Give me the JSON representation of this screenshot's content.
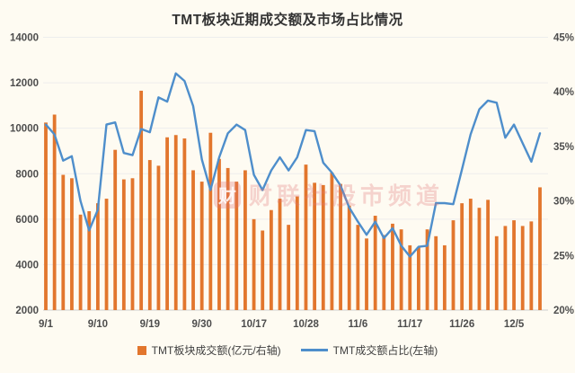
{
  "title": "TMT板块近期成交额及市场占比情况",
  "watermark": {
    "logo_char": "财",
    "text": "财联社股市频道"
  },
  "legend": {
    "bar_label": "TMT板块成交额(亿元/右轴)",
    "line_label": "TMT成交额占比(左轴)"
  },
  "colors": {
    "background": "#fefbf2",
    "bar": "#e2762d",
    "line": "#4e8ecb",
    "grid": "#ededed",
    "baseline": "#cfcfcf",
    "axis_text": "#4d4d4d"
  },
  "chart_data": {
    "type": "bar",
    "title": "TMT板块近期成交额及市场占比情况",
    "x_tick_labels": [
      "9/1",
      "9/10",
      "9/19",
      "9/30",
      "10/17",
      "10/28",
      "11/6",
      "11/17",
      "11/26",
      "12/5"
    ],
    "x_tick_indices": [
      0,
      6,
      12,
      18,
      24,
      30,
      36,
      42,
      48,
      54
    ],
    "left_axis": {
      "min": 2000,
      "max": 14000,
      "step": 2000,
      "labels": [
        "14000",
        "12000",
        "10000",
        "8000",
        "6000",
        "4000",
        "2000"
      ]
    },
    "right_axis": {
      "min": 20,
      "max": 45,
      "step": 5,
      "labels": [
        "45%",
        "40%",
        "35%",
        "30%",
        "25%",
        "20%"
      ]
    },
    "grid": true,
    "legend_position": "bottom",
    "series": [
      {
        "name": "TMT板块成交额(亿元/右轴)",
        "type": "bar",
        "axis": "left",
        "color": "#e2762d",
        "values": [
          10250,
          10600,
          7950,
          7800,
          6200,
          6350,
          6700,
          6900,
          9050,
          7750,
          7800,
          11650,
          8600,
          8350,
          9600,
          9700,
          9550,
          8150,
          7650,
          9800,
          8650,
          8250,
          7650,
          8150,
          6000,
          5500,
          6400,
          6900,
          5750,
          7000,
          8400,
          7600,
          7500,
          8050,
          7550,
          6600,
          5750,
          5150,
          6150,
          5300,
          5800,
          5550,
          4850,
          4750,
          5550,
          5250,
          4850,
          5950,
          6700,
          6900,
          6500,
          6850,
          5250,
          5700,
          5950,
          5700,
          5900,
          7400
        ]
      },
      {
        "name": "TMT成交额占比(左轴)",
        "type": "line",
        "axis": "right",
        "color": "#4e8ecb",
        "values": [
          37.0,
          36.1,
          33.7,
          34.1,
          30.0,
          27.3,
          29.2,
          37.0,
          37.2,
          34.4,
          34.2,
          36.6,
          36.3,
          39.5,
          39.1,
          41.7,
          41.0,
          38.7,
          33.8,
          31.0,
          34.0,
          36.2,
          37.0,
          36.5,
          32.4,
          31.0,
          32.8,
          34.0,
          32.8,
          34.0,
          36.5,
          36.4,
          33.5,
          32.6,
          31.4,
          29.4,
          28.1,
          26.9,
          28.1,
          26.6,
          27.5,
          25.9,
          24.9,
          25.8,
          25.9,
          29.8,
          29.8,
          29.7,
          32.9,
          36.1,
          38.4,
          39.2,
          39.0,
          35.8,
          37.0,
          35.3,
          33.6,
          36.2
        ]
      }
    ]
  }
}
